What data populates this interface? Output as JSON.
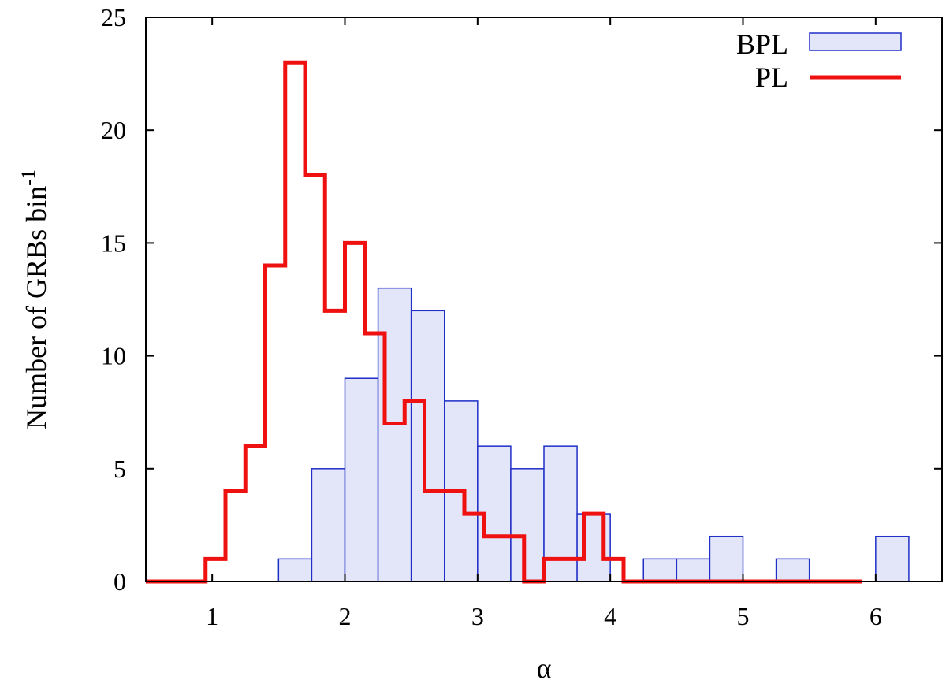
{
  "chart_data": {
    "type": "histogram",
    "title": "",
    "xlabel": "α",
    "ylabel": "Number of GRBs bin",
    "ylabel_superscript": "-1",
    "xlim": [
      0.5,
      6.5
    ],
    "ylim": [
      0,
      25
    ],
    "xticks": [
      1,
      2,
      3,
      4,
      5,
      6
    ],
    "yticks": [
      0,
      5,
      10,
      15,
      20,
      25
    ],
    "grid": false,
    "legend_position": "top-right",
    "series": [
      {
        "name": "BPL",
        "style": "filled-bars",
        "fill": "#e3e5f9",
        "stroke": "#1f2fc8",
        "bins": [
          {
            "x0": 1.5,
            "x1": 1.75,
            "value": 1
          },
          {
            "x0": 1.75,
            "x1": 2.0,
            "value": 5
          },
          {
            "x0": 2.0,
            "x1": 2.25,
            "value": 9
          },
          {
            "x0": 2.25,
            "x1": 2.5,
            "value": 13
          },
          {
            "x0": 2.5,
            "x1": 2.75,
            "value": 12
          },
          {
            "x0": 2.75,
            "x1": 3.0,
            "value": 8
          },
          {
            "x0": 3.0,
            "x1": 3.25,
            "value": 6
          },
          {
            "x0": 3.25,
            "x1": 3.5,
            "value": 5
          },
          {
            "x0": 3.5,
            "x1": 3.75,
            "value": 6
          },
          {
            "x0": 3.75,
            "x1": 4.0,
            "value": 3
          },
          {
            "x0": 4.25,
            "x1": 4.5,
            "value": 1
          },
          {
            "x0": 4.5,
            "x1": 4.75,
            "value": 1
          },
          {
            "x0": 4.75,
            "x1": 5.0,
            "value": 2
          },
          {
            "x0": 5.25,
            "x1": 5.5,
            "value": 1
          },
          {
            "x0": 6.0,
            "x1": 6.25,
            "value": 2
          }
        ]
      },
      {
        "name": "PL",
        "style": "step-line",
        "stroke": "#ef1010",
        "x_start": 0.5,
        "bin_width": 0.15,
        "values": [
          0,
          0,
          0,
          1,
          4,
          6,
          14,
          23,
          18,
          12,
          15,
          11,
          7,
          8,
          4,
          4,
          3,
          2,
          2,
          0,
          1,
          1,
          3,
          1,
          0,
          0,
          0,
          0,
          0,
          0,
          0,
          0,
          0,
          0,
          0,
          0
        ]
      }
    ]
  }
}
